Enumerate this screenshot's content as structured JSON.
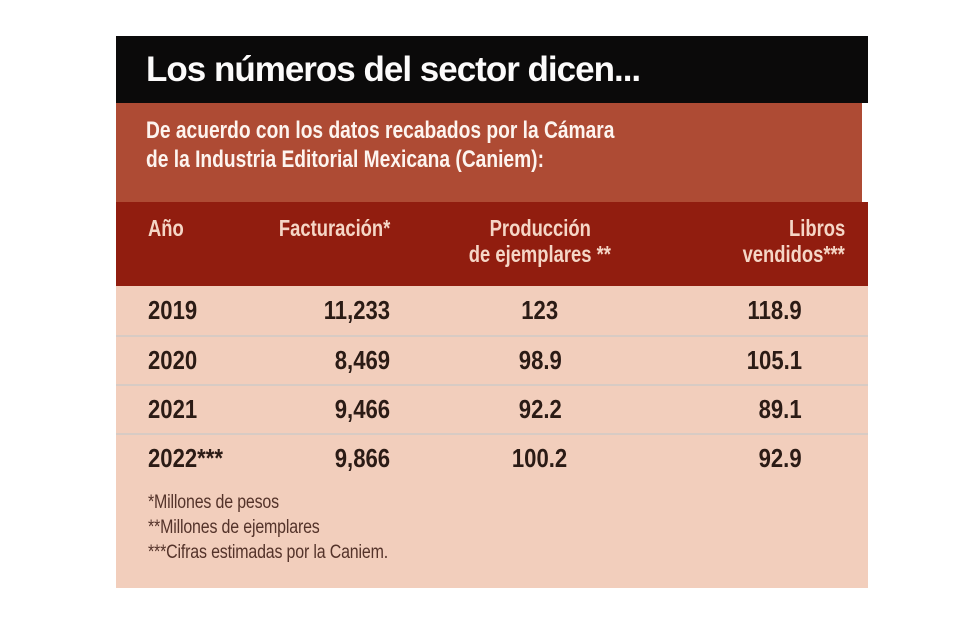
{
  "header": {
    "title": "Los números del sector dicen..."
  },
  "subtitle": {
    "line1": "De acuerdo con los datos recabados por la Cámara",
    "line2": "de la Industria Editorial Mexicana (Caniem):"
  },
  "table": {
    "headers": [
      {
        "line1": "Año",
        "line2": ""
      },
      {
        "line1": "Facturación*",
        "line2": ""
      },
      {
        "line1": "Producción",
        "line2": "de ejemplares **"
      },
      {
        "line1": "Libros",
        "line2": "vendidos***"
      }
    ]
  },
  "chart_data": {
    "type": "table",
    "title": "Los números del sector dicen...",
    "subtitle": "De acuerdo con los datos recabados por la Cámara de la Industria Editorial Mexicana (Caniem):",
    "columns": [
      "Año",
      "Facturación*",
      "Producción de ejemplares **",
      "Libros vendidos***"
    ],
    "rows": [
      [
        "2019",
        "11,233",
        "123",
        "118.9"
      ],
      [
        "2020",
        "8,469",
        "98.9",
        "105.1"
      ],
      [
        "2021",
        "9,466",
        "92.2",
        "89.1"
      ],
      [
        "2022***",
        "9,866",
        "100.2",
        "92.9"
      ]
    ],
    "footnotes": [
      "*Millones de pesos",
      "**Millones de ejemplares",
      "***Cifras estimadas por la Caniem."
    ]
  },
  "colors": {
    "title_bar_bg": "#0b0a0a",
    "subtitle_band_bg": "#ae4b34",
    "table_header_bg": "#911d0f",
    "table_header_text": "#f5d6c6",
    "body_bg": "#f2cebc",
    "row_text": "#2b1b15",
    "row_separator": "#d8cbc4",
    "footnote_text": "#54332a",
    "title_text": "#fcfbfb"
  }
}
